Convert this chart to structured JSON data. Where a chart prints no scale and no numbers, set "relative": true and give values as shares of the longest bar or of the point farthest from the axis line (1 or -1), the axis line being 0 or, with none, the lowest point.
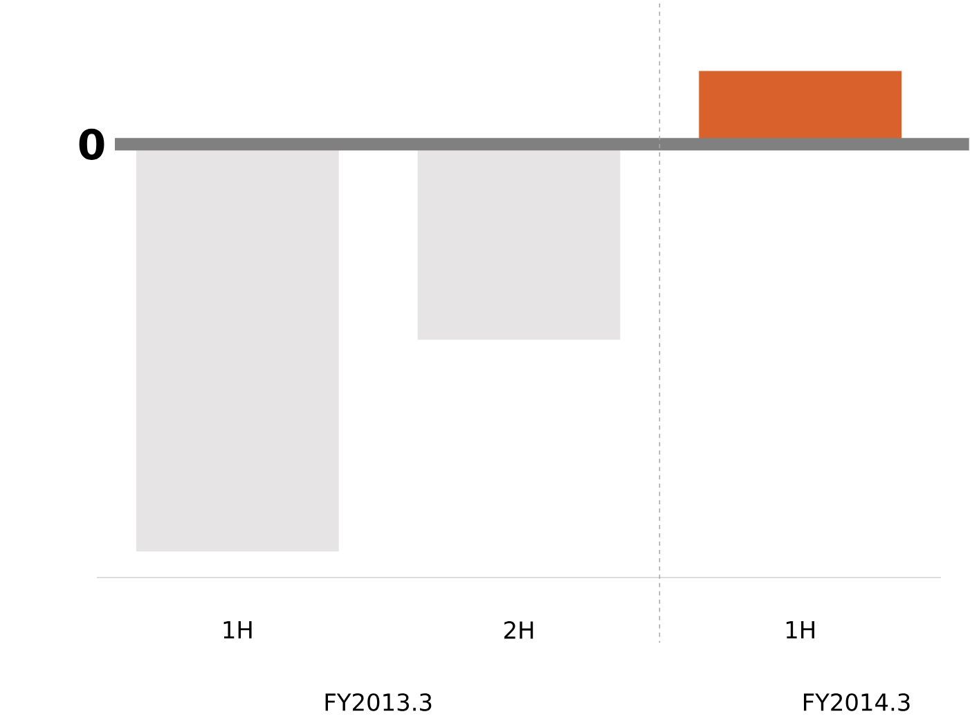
{
  "chart_data": {
    "type": "bar",
    "relative": true,
    "categories": [
      "1H",
      "2H",
      "1H"
    ],
    "values": [
      -1,
      -0.48,
      0.18
    ],
    "colors": [
      "#e6e4e4",
      "#e6e4e4",
      "#d9612c"
    ],
    "ref_lines": [
      {
        "axis": "y",
        "value": 0,
        "label": "0",
        "color": "#808080"
      }
    ],
    "annotations": [
      "FY2013.3",
      "FY2014.3"
    ]
  }
}
